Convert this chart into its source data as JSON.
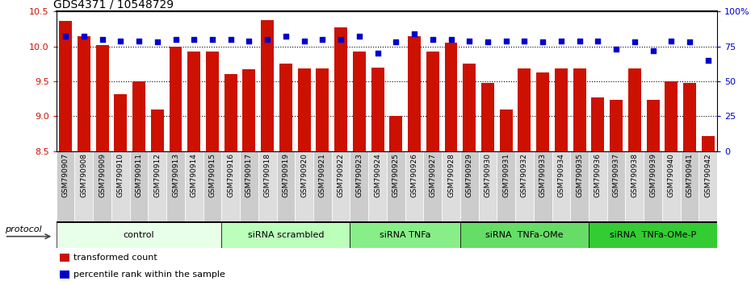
{
  "title": "GDS4371 / 10548729",
  "samples": [
    "GSM790907",
    "GSM790908",
    "GSM790909",
    "GSM790910",
    "GSM790911",
    "GSM790912",
    "GSM790913",
    "GSM790914",
    "GSM790915",
    "GSM790916",
    "GSM790917",
    "GSM790918",
    "GSM790919",
    "GSM790920",
    "GSM790921",
    "GSM790922",
    "GSM790923",
    "GSM790924",
    "GSM790925",
    "GSM790926",
    "GSM790927",
    "GSM790928",
    "GSM790929",
    "GSM790930",
    "GSM790931",
    "GSM790932",
    "GSM790933",
    "GSM790934",
    "GSM790935",
    "GSM790936",
    "GSM790937",
    "GSM790938",
    "GSM790939",
    "GSM790940",
    "GSM790941",
    "GSM790942"
  ],
  "red_values": [
    10.36,
    10.15,
    10.02,
    9.32,
    9.5,
    9.1,
    10.0,
    9.93,
    9.93,
    9.6,
    9.67,
    10.37,
    9.75,
    9.68,
    9.68,
    10.27,
    9.93,
    9.7,
    9.0,
    10.15,
    9.93,
    10.05,
    9.75,
    9.47,
    9.1,
    9.68,
    9.62,
    9.68,
    9.68,
    9.27,
    9.23,
    9.68,
    9.23,
    9.5,
    9.48,
    8.72
  ],
  "blue_values": [
    82,
    82,
    80,
    79,
    79,
    78,
    80,
    80,
    80,
    80,
    79,
    80,
    82,
    79,
    80,
    80,
    82,
    70,
    78,
    84,
    80,
    80,
    79,
    78,
    79,
    79,
    78,
    79,
    79,
    79,
    73,
    78,
    72,
    79,
    78,
    65
  ],
  "ylim_left": [
    8.5,
    10.5
  ],
  "ylim_right": [
    0,
    100
  ],
  "yticks_left": [
    8.5,
    9.0,
    9.5,
    10.0,
    10.5
  ],
  "yticks_right": [
    0,
    25,
    50,
    75,
    100
  ],
  "bar_color": "#cc1100",
  "dot_color": "#0000cc",
  "groups": [
    {
      "label": "control",
      "start": 0,
      "end": 8,
      "color": "#e8ffe8"
    },
    {
      "label": "siRNA scrambled",
      "start": 9,
      "end": 15,
      "color": "#bbffbb"
    },
    {
      "label": "siRNA TNFa",
      "start": 16,
      "end": 21,
      "color": "#88ee88"
    },
    {
      "label": "siRNA  TNFa-OMe",
      "start": 22,
      "end": 28,
      "color": "#66dd66"
    },
    {
      "label": "siRNA  TNFa-OMe-P",
      "start": 29,
      "end": 35,
      "color": "#33cc33"
    }
  ],
  "protocol_label": "protocol",
  "legend_items": [
    {
      "label": "transformed count",
      "color": "#cc1100"
    },
    {
      "label": "percentile rank within the sample",
      "color": "#0000cc"
    }
  ]
}
